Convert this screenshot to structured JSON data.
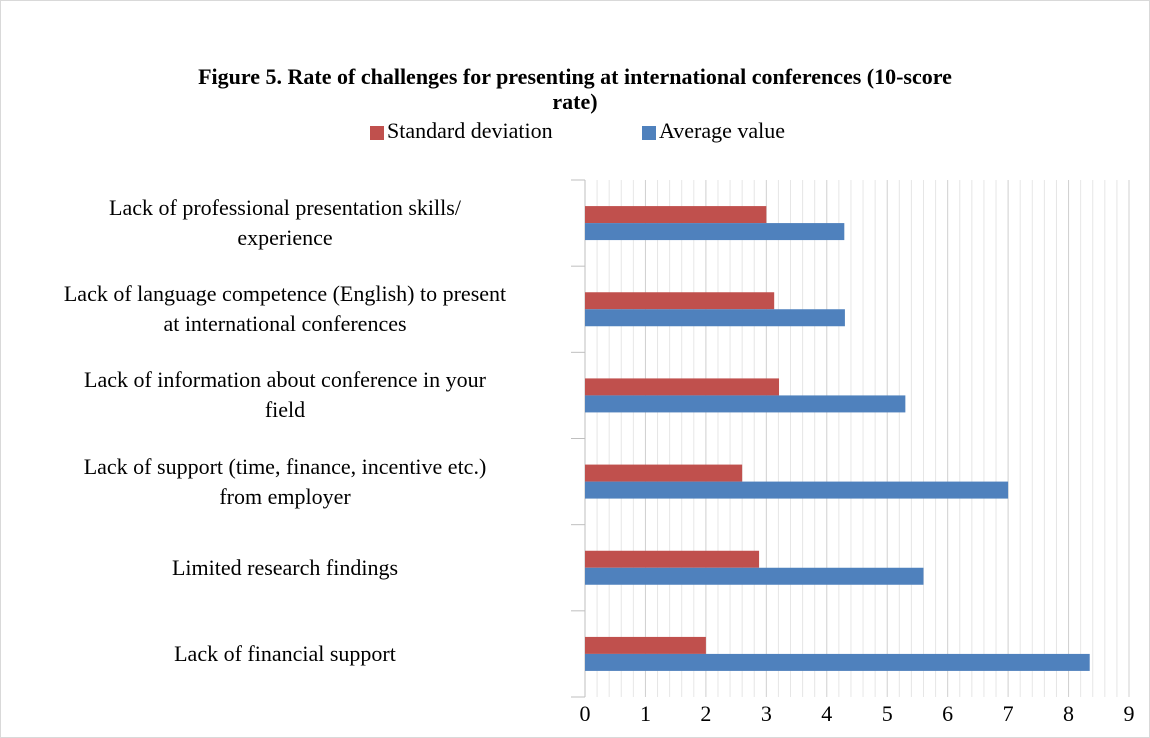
{
  "chart_data": {
    "type": "barh",
    "title": "Figure 5. Rate of challenges for presenting at international conferences (10-score rate)",
    "categories": [
      "Lack of professional presentation skills/\nexperience",
      "Lack of language competence (English) to present\nat international conferences",
      "Lack of information about conference in your\nfield",
      "Lack of support (time, finance, incentive etc.)\nfrom employer",
      "Limited research findings",
      "Lack of financial support"
    ],
    "series": [
      {
        "name": "Standard deviation",
        "color": "#c0504d",
        "values": [
          3.0,
          3.13,
          3.21,
          2.6,
          2.88,
          2.0
        ]
      },
      {
        "name": "Average value",
        "color": "#4f81bd",
        "values": [
          4.29,
          4.3,
          5.3,
          7.0,
          5.6,
          8.35
        ]
      }
    ],
    "xlim": [
      0,
      9
    ],
    "xticks": [
      0,
      1,
      2,
      3,
      4,
      5,
      6,
      7,
      8,
      9
    ],
    "grid": true,
    "minor_grid": 5,
    "legend": "top"
  }
}
